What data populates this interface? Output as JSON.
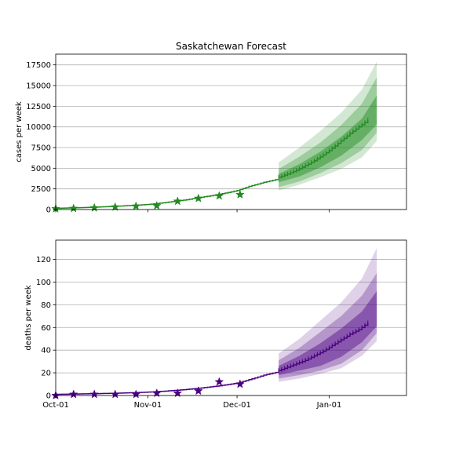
{
  "chart_data": [
    {
      "type": "line",
      "title": "Saskatchewan Forecast",
      "xlabel": "",
      "ylabel": "cases per week",
      "xlim_days": [
        0,
        118
      ],
      "ylim": [
        0,
        18800
      ],
      "yticks": [
        0,
        2500,
        5000,
        7500,
        10000,
        12500,
        15000,
        17500
      ],
      "ytick_labels": [
        "0",
        "2500",
        "5000",
        "7500",
        "10000",
        "12500",
        "15000",
        "17500"
      ],
      "grid": "horizontal",
      "color": "#228B22",
      "fit_line": {
        "x": [
          0,
          10,
          20,
          31,
          40,
          50,
          61,
          65,
          70,
          75
        ],
        "y": [
          150,
          250,
          400,
          620,
          1000,
          1550,
          2300,
          2800,
          3300,
          3700
        ]
      },
      "forecast_median": {
        "x": [
          75,
          78,
          81,
          84,
          87,
          90,
          93,
          96,
          99,
          102,
          105
        ],
        "y": [
          3900,
          4300,
          4750,
          5300,
          5900,
          6600,
          7400,
          8300,
          9200,
          10000,
          10800
        ]
      },
      "bands": [
        {
          "name": "95% interval",
          "x": [
            75,
            82,
            89,
            96,
            103,
            108
          ],
          "lower": [
            2300,
            3000,
            3900,
            4900,
            6300,
            8300
          ],
          "upper": [
            5700,
            7500,
            9500,
            11700,
            14500,
            17900
          ]
        },
        {
          "name": "80% interval",
          "x": [
            75,
            82,
            89,
            96,
            103,
            108
          ],
          "lower": [
            2700,
            3400,
            4400,
            5600,
            7200,
            9300
          ],
          "upper": [
            4900,
            6400,
            8100,
            10200,
            12800,
            16000
          ]
        },
        {
          "name": "50% interval",
          "x": [
            75,
            82,
            89,
            96,
            103,
            108
          ],
          "lower": [
            3300,
            4000,
            5100,
            6500,
            8400,
            10300
          ],
          "upper": [
            4300,
            5500,
            7000,
            8800,
            11000,
            13800
          ]
        }
      ],
      "observed": {
        "x": [
          0,
          6,
          13,
          20,
          27,
          34,
          41,
          48,
          55,
          62
        ],
        "y": [
          100,
          130,
          200,
          300,
          400,
          450,
          1000,
          1350,
          1650,
          1800
        ]
      }
    },
    {
      "type": "line",
      "title": "",
      "xlabel": "",
      "ylabel": "deaths per week",
      "xlim_days": [
        0,
        118
      ],
      "ylim": [
        0,
        137
      ],
      "yticks": [
        0,
        20,
        40,
        60,
        80,
        100,
        120
      ],
      "ytick_labels": [
        "0",
        "20",
        "40",
        "60",
        "80",
        "100",
        "120"
      ],
      "xticks_days": [
        0,
        31,
        61,
        92
      ],
      "xtick_labels": [
        "Oct-01",
        "Nov-01",
        "Dec-01",
        "Jan-01"
      ],
      "grid": "horizontal",
      "color": "#4B0082",
      "fit_line": {
        "x": [
          0,
          10,
          20,
          31,
          40,
          50,
          61,
          65,
          70,
          75
        ],
        "y": [
          1,
          1.5,
          2,
          3,
          4.5,
          7,
          11,
          14,
          18,
          21
        ]
      },
      "forecast_median": {
        "x": [
          75,
          78,
          81,
          84,
          87,
          90,
          93,
          96,
          99,
          102,
          105
        ],
        "y": [
          22,
          25,
          28,
          31,
          35,
          39,
          44,
          49,
          54,
          58,
          64
        ]
      },
      "bands": [
        {
          "name": "95% interval",
          "x": [
            75,
            82,
            89,
            96,
            103,
            108
          ],
          "lower": [
            12,
            15,
            19,
            24,
            35,
            48
          ],
          "upper": [
            37,
            50,
            66,
            82,
            103,
            130
          ]
        },
        {
          "name": "80% interval",
          "x": [
            75,
            82,
            89,
            96,
            103,
            108
          ],
          "lower": [
            15,
            18,
            22,
            28,
            40,
            55
          ],
          "upper": [
            31,
            42,
            56,
            70,
            88,
            108
          ]
        },
        {
          "name": "50% interval",
          "x": [
            75,
            82,
            89,
            96,
            103,
            108
          ],
          "lower": [
            18,
            22,
            26,
            34,
            47,
            61
          ],
          "upper": [
            26,
            35,
            46,
            59,
            74,
            92
          ]
        }
      ],
      "observed": {
        "x": [
          0,
          6,
          13,
          20,
          27,
          34,
          41,
          48,
          55,
          62
        ],
        "y": [
          0,
          1,
          1,
          1,
          1,
          2,
          2,
          4,
          12,
          10
        ]
      }
    }
  ]
}
